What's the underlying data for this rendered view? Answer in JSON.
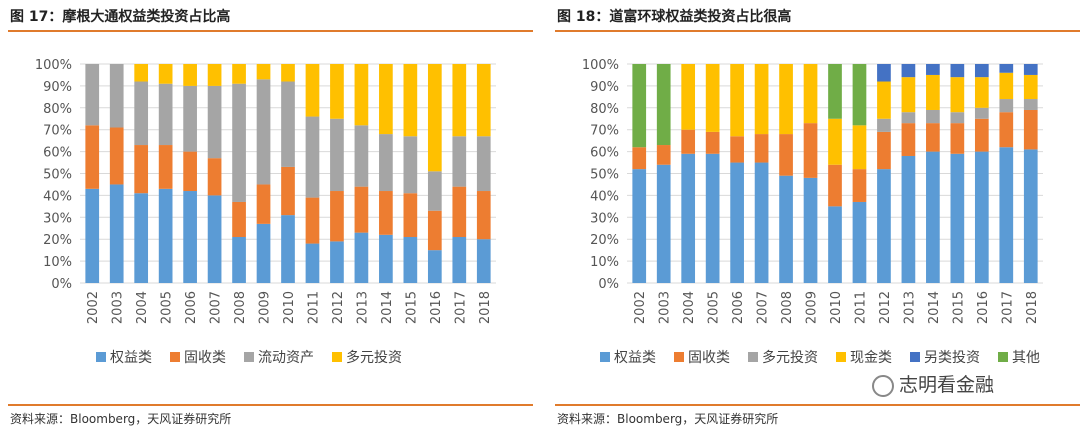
{
  "charts": [
    {
      "title": "图 17：摩根大通权益类投资占比高",
      "source": "资料来源：Bloomberg，天风证券研究所"
    },
    {
      "title": "图 18：道富环球权益类投资占比很高",
      "source": "资料来源：Bloomberg，天风证券研究所"
    }
  ],
  "watermark": "志明看金融",
  "chart_data": [
    {
      "type": "bar",
      "stacked": true,
      "title": "",
      "xlabel": "",
      "ylabel": "",
      "ylim": [
        0,
        100
      ],
      "yticks": [
        "0%",
        "10%",
        "20%",
        "30%",
        "40%",
        "50%",
        "60%",
        "70%",
        "80%",
        "90%",
        "100%"
      ],
      "grid": true,
      "legend": "bottom",
      "categories": [
        "2002",
        "2003",
        "2004",
        "2005",
        "2006",
        "2007",
        "2008",
        "2009",
        "2010",
        "2011",
        "2012",
        "2013",
        "2014",
        "2015",
        "2016",
        "2017",
        "2018"
      ],
      "series": [
        {
          "name": "权益类",
          "color": "#5b9bd5",
          "values": [
            43,
            45,
            41,
            43,
            42,
            40,
            21,
            27,
            31,
            18,
            19,
            23,
            22,
            21,
            15,
            21,
            20
          ]
        },
        {
          "name": "固收类",
          "color": "#ed7d31",
          "values": [
            29,
            26,
            22,
            20,
            18,
            17,
            16,
            18,
            22,
            21,
            23,
            21,
            20,
            20,
            18,
            23,
            22
          ]
        },
        {
          "name": "流动资产",
          "color": "#a5a5a5",
          "values": [
            28,
            29,
            29,
            28,
            30,
            33,
            54,
            48,
            39,
            37,
            33,
            28,
            26,
            26,
            18,
            23,
            25
          ]
        },
        {
          "name": "多元投资",
          "color": "#ffc000",
          "values": [
            0,
            0,
            8,
            9,
            10,
            10,
            9,
            7,
            8,
            24,
            25,
            28,
            32,
            33,
            49,
            33,
            33
          ]
        }
      ]
    },
    {
      "type": "bar",
      "stacked": true,
      "title": "",
      "xlabel": "",
      "ylabel": "",
      "ylim": [
        0,
        100
      ],
      "yticks": [
        "0%",
        "10%",
        "20%",
        "30%",
        "40%",
        "50%",
        "60%",
        "70%",
        "80%",
        "90%",
        "100%"
      ],
      "grid": true,
      "legend": "bottom",
      "categories": [
        "2002",
        "2003",
        "2004",
        "2005",
        "2006",
        "2007",
        "2008",
        "2009",
        "2010",
        "2011",
        "2012",
        "2013",
        "2014",
        "2015",
        "2016",
        "2017",
        "2018"
      ],
      "series": [
        {
          "name": "权益类",
          "color": "#5b9bd5",
          "values": [
            52,
            54,
            59,
            59,
            55,
            55,
            49,
            48,
            35,
            37,
            52,
            58,
            60,
            59,
            60,
            62,
            61
          ]
        },
        {
          "name": "固收类",
          "color": "#ed7d31",
          "values": [
            10,
            9,
            11,
            10,
            12,
            13,
            19,
            25,
            19,
            15,
            17,
            15,
            13,
            14,
            15,
            16,
            18
          ]
        },
        {
          "name": "多元投资",
          "color": "#a5a5a5",
          "values": [
            0,
            0,
            0,
            0,
            0,
            0,
            0,
            0,
            0,
            0,
            6,
            5,
            6,
            5,
            5,
            6,
            5
          ]
        },
        {
          "name": "现金类",
          "color": "#ffc000",
          "values": [
            0,
            0,
            30,
            31,
            33,
            32,
            32,
            27,
            21,
            20,
            17,
            16,
            16,
            16,
            14,
            12,
            11
          ]
        },
        {
          "name": "另类投资",
          "color": "#4472c4",
          "values": [
            0,
            0,
            0,
            0,
            0,
            0,
            0,
            0,
            0,
            0,
            8,
            6,
            5,
            6,
            6,
            4,
            5
          ]
        },
        {
          "name": "其他",
          "color": "#70ad47",
          "values": [
            38,
            37,
            0,
            0,
            0,
            0,
            0,
            0,
            25,
            28,
            0,
            0,
            0,
            0,
            0,
            0,
            0
          ]
        }
      ]
    }
  ]
}
